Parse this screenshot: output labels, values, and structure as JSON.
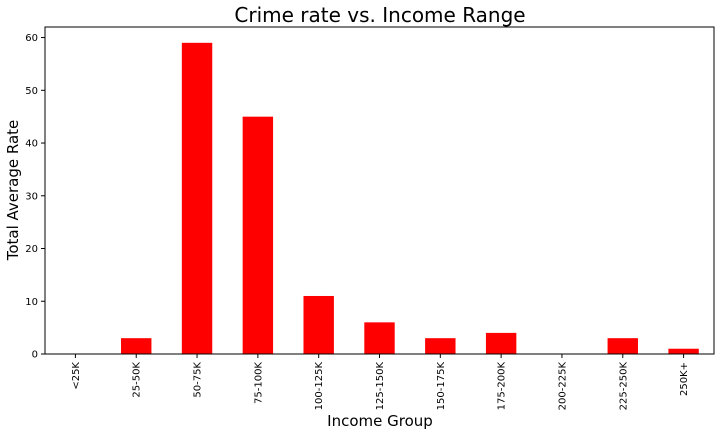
{
  "chart_data": {
    "type": "bar",
    "title": "Crime rate vs. Income Range",
    "xlabel": "Income Group",
    "ylabel": "Total Average Rate",
    "categories": [
      "<25K",
      "25-50K",
      "50-75K",
      "75-100K",
      "100-125K",
      "125-150K",
      "150-175K",
      "175-200K",
      "200-225K",
      "225-250K",
      "250K+"
    ],
    "values": [
      0,
      3,
      59,
      45,
      11,
      6,
      3,
      4,
      0,
      3,
      1
    ],
    "ylim": [
      0,
      62
    ],
    "yticks": [
      0,
      10,
      20,
      30,
      40,
      50,
      60
    ],
    "bar_color": "#ff0000",
    "grid": false,
    "legend": false
  }
}
